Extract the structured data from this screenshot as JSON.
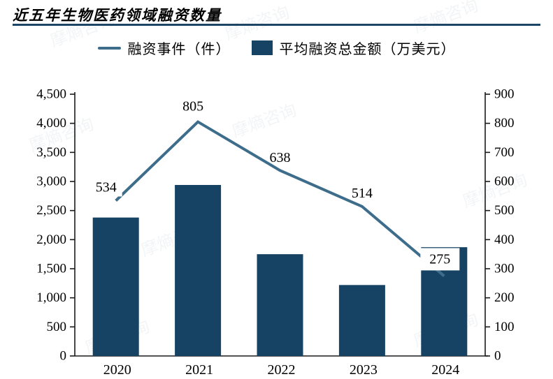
{
  "page": {
    "watermark_text": "摩熵咨询",
    "watermark_hex_glyph": "◇"
  },
  "colors": {
    "axis": "#1a1a1a",
    "divider": "#1c4566",
    "data_label": "#000000",
    "label_background": "#ffffff"
  },
  "chart_data": {
    "type": "combo-bar-line",
    "title": "近五年生物医药领域融资数量",
    "categories": [
      "2020",
      "2021",
      "2022",
      "2023",
      "2024"
    ],
    "series": [
      {
        "name": "融资事件（件）",
        "type": "line",
        "axis": "right",
        "color": "#3e6d8c",
        "values": [
          534,
          805,
          638,
          514,
          275
        ],
        "data_labels": [
          "534",
          "805",
          "638",
          "514",
          "275"
        ]
      },
      {
        "name": "平均融资总金额（万美元）",
        "type": "bar",
        "axis": "left",
        "color": "#164364",
        "values": [
          2380,
          2940,
          1750,
          1220,
          1870
        ]
      }
    ],
    "left_axis": {
      "min": 0,
      "max": 4500,
      "step": 500,
      "tick_labels": [
        "0",
        "500",
        "1,000",
        "1,500",
        "2,000",
        "2,500",
        "3,000",
        "3,500",
        "4,000",
        "4,500"
      ]
    },
    "right_axis": {
      "min": 0,
      "max": 900,
      "step": 100,
      "tick_labels": [
        "0",
        "100",
        "200",
        "300",
        "400",
        "500",
        "600",
        "700",
        "800",
        "900"
      ]
    },
    "legend_position": "top",
    "grid": false
  }
}
